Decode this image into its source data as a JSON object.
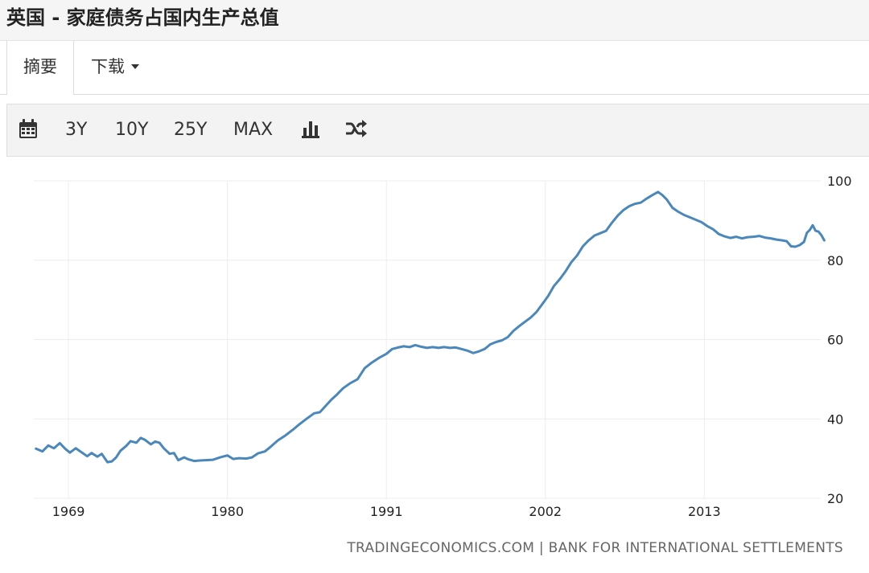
{
  "header": {
    "title": "英国 - 家庭债务占国内生产总值"
  },
  "tabs": [
    {
      "label": "摘要"
    },
    {
      "label": "下载"
    }
  ],
  "toolbar": {
    "calendar_icon": "calendar-icon",
    "ranges": [
      "3Y",
      "10Y",
      "25Y",
      "MAX"
    ],
    "bar_chart_icon": "bar-chart-icon",
    "shuffle_icon": "shuffle-icon"
  },
  "source": "TRADINGECONOMICS.COM  |  BANK FOR INTERNATIONAL SETTLEMENTS",
  "colors": {
    "line": "#4a87bb",
    "grid": "#ececec",
    "axis_text": "#222222"
  },
  "chart_data": {
    "type": "line",
    "xlim": [
      1966.6,
      2020.5
    ],
    "ylim": [
      20,
      100
    ],
    "x_ticks": [
      1969,
      1980,
      1991,
      2002,
      2013
    ],
    "y_ticks": [
      20,
      40,
      60,
      80,
      100
    ],
    "grid": true,
    "y_axis_position": "right",
    "series": [
      {
        "values": [
          [
            1966.75,
            32.5
          ],
          [
            1967.2,
            31.8
          ],
          [
            1967.6,
            33.3
          ],
          [
            1968.0,
            32.6
          ],
          [
            1968.4,
            33.9
          ],
          [
            1968.8,
            32.4
          ],
          [
            1969.1,
            31.5
          ],
          [
            1969.5,
            32.6
          ],
          [
            1969.9,
            31.6
          ],
          [
            1970.3,
            30.6
          ],
          [
            1970.6,
            31.4
          ],
          [
            1971.0,
            30.5
          ],
          [
            1971.3,
            31.2
          ],
          [
            1971.7,
            29.1
          ],
          [
            1972.0,
            29.3
          ],
          [
            1972.3,
            30.3
          ],
          [
            1972.6,
            32.0
          ],
          [
            1973.0,
            33.2
          ],
          [
            1973.3,
            34.4
          ],
          [
            1973.7,
            34.0
          ],
          [
            1974.0,
            35.2
          ],
          [
            1974.3,
            34.7
          ],
          [
            1974.7,
            33.6
          ],
          [
            1975.0,
            34.3
          ],
          [
            1975.3,
            34.0
          ],
          [
            1975.6,
            32.6
          ],
          [
            1976.0,
            31.2
          ],
          [
            1976.3,
            31.4
          ],
          [
            1976.6,
            29.6
          ],
          [
            1977.0,
            30.3
          ],
          [
            1977.3,
            29.8
          ],
          [
            1977.7,
            29.4
          ],
          [
            1978.0,
            29.5
          ],
          [
            1978.5,
            29.6
          ],
          [
            1979.0,
            29.7
          ],
          [
            1979.5,
            30.3
          ],
          [
            1980.0,
            30.8
          ],
          [
            1980.4,
            29.9
          ],
          [
            1980.8,
            30.1
          ],
          [
            1981.3,
            30.0
          ],
          [
            1981.7,
            30.3
          ],
          [
            1982.1,
            31.3
          ],
          [
            1982.6,
            31.8
          ],
          [
            1983.0,
            33.0
          ],
          [
            1983.5,
            34.6
          ],
          [
            1984.0,
            35.8
          ],
          [
            1984.5,
            37.2
          ],
          [
            1985.0,
            38.7
          ],
          [
            1985.5,
            40.1
          ],
          [
            1986.0,
            41.4
          ],
          [
            1986.4,
            41.7
          ],
          [
            1986.8,
            43.3
          ],
          [
            1987.2,
            44.9
          ],
          [
            1987.6,
            46.2
          ],
          [
            1988.0,
            47.7
          ],
          [
            1988.5,
            49.0
          ],
          [
            1989.0,
            50.0
          ],
          [
            1989.5,
            52.8
          ],
          [
            1990.0,
            54.2
          ],
          [
            1990.5,
            55.4
          ],
          [
            1991.0,
            56.4
          ],
          [
            1991.4,
            57.6
          ],
          [
            1991.8,
            58.0
          ],
          [
            1992.2,
            58.3
          ],
          [
            1992.6,
            58.1
          ],
          [
            1993.0,
            58.6
          ],
          [
            1993.4,
            58.2
          ],
          [
            1993.8,
            57.9
          ],
          [
            1994.2,
            58.1
          ],
          [
            1994.6,
            57.9
          ],
          [
            1995.0,
            58.1
          ],
          [
            1995.4,
            57.9
          ],
          [
            1995.8,
            58.0
          ],
          [
            1996.2,
            57.6
          ],
          [
            1996.6,
            57.2
          ],
          [
            1997.0,
            56.6
          ],
          [
            1997.4,
            57.0
          ],
          [
            1997.8,
            57.6
          ],
          [
            1998.2,
            58.8
          ],
          [
            1998.6,
            59.4
          ],
          [
            1999.0,
            59.8
          ],
          [
            1999.4,
            60.6
          ],
          [
            1999.8,
            62.2
          ],
          [
            2000.2,
            63.4
          ],
          [
            2000.6,
            64.5
          ],
          [
            2001.0,
            65.6
          ],
          [
            2001.4,
            67.0
          ],
          [
            2001.8,
            69.0
          ],
          [
            2002.2,
            71.0
          ],
          [
            2002.6,
            73.5
          ],
          [
            2003.0,
            75.2
          ],
          [
            2003.4,
            77.2
          ],
          [
            2003.8,
            79.5
          ],
          [
            2004.2,
            81.2
          ],
          [
            2004.6,
            83.5
          ],
          [
            2005.0,
            85.0
          ],
          [
            2005.4,
            86.2
          ],
          [
            2005.8,
            86.8
          ],
          [
            2006.2,
            87.4
          ],
          [
            2006.6,
            89.4
          ],
          [
            2007.0,
            91.2
          ],
          [
            2007.4,
            92.6
          ],
          [
            2007.8,
            93.6
          ],
          [
            2008.2,
            94.2
          ],
          [
            2008.6,
            94.5
          ],
          [
            2009.0,
            95.5
          ],
          [
            2009.4,
            96.4
          ],
          [
            2009.8,
            97.2
          ],
          [
            2010.1,
            96.4
          ],
          [
            2010.4,
            95.3
          ],
          [
            2010.8,
            93.2
          ],
          [
            2011.2,
            92.2
          ],
          [
            2011.6,
            91.4
          ],
          [
            2012.0,
            90.8
          ],
          [
            2012.4,
            90.2
          ],
          [
            2012.8,
            89.6
          ],
          [
            2013.2,
            88.6
          ],
          [
            2013.6,
            87.8
          ],
          [
            2014.0,
            86.6
          ],
          [
            2014.4,
            86.0
          ],
          [
            2014.8,
            85.6
          ],
          [
            2015.2,
            85.9
          ],
          [
            2015.6,
            85.5
          ],
          [
            2016.0,
            85.8
          ],
          [
            2016.4,
            85.9
          ],
          [
            2016.8,
            86.1
          ],
          [
            2017.2,
            85.7
          ],
          [
            2017.6,
            85.5
          ],
          [
            2018.0,
            85.2
          ],
          [
            2018.4,
            85.0
          ],
          [
            2018.7,
            84.8
          ],
          [
            2019.0,
            83.5
          ],
          [
            2019.3,
            83.4
          ],
          [
            2019.6,
            83.8
          ],
          [
            2019.9,
            84.6
          ],
          [
            2020.1,
            86.9
          ],
          [
            2020.3,
            87.6
          ],
          [
            2020.5,
            88.8
          ],
          [
            2020.7,
            87.4
          ],
          [
            2020.9,
            87.2
          ],
          [
            2021.1,
            86.3
          ],
          [
            2021.3,
            85.0
          ]
        ]
      }
    ]
  }
}
